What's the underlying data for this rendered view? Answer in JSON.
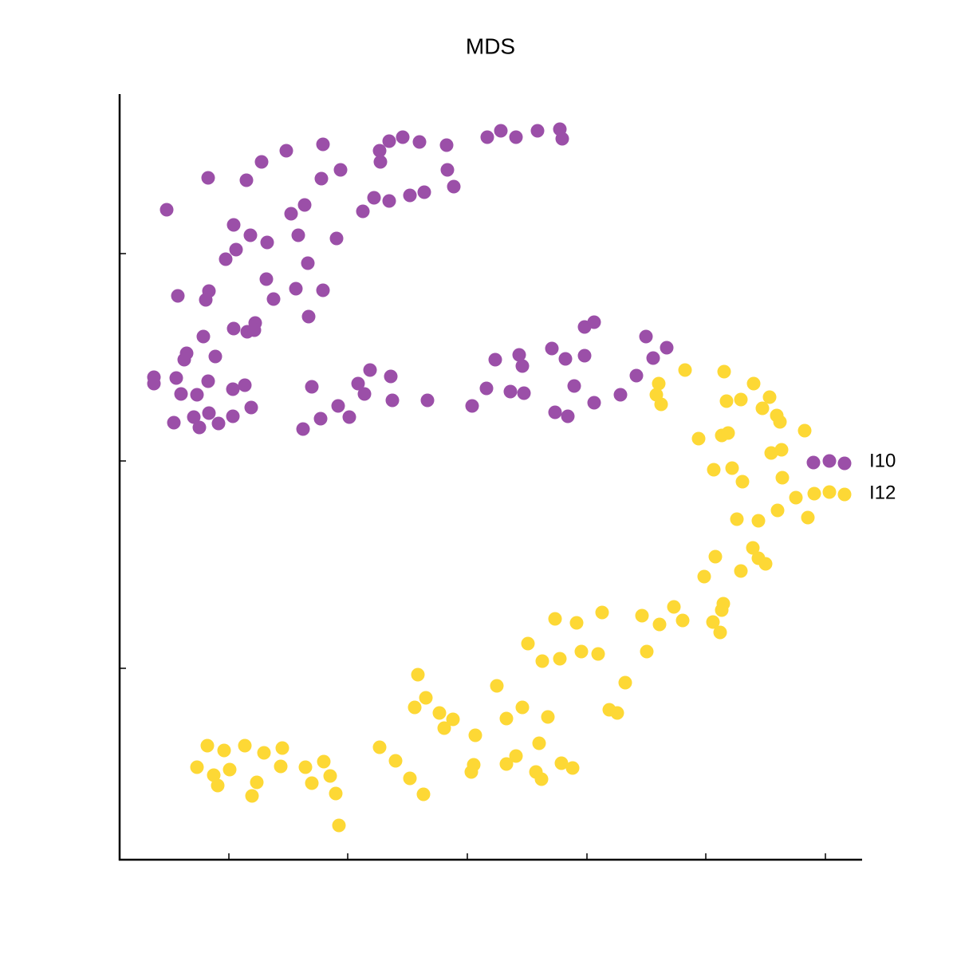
{
  "chart_data": {
    "type": "scatter",
    "title": "MDS",
    "xlim": [
      0,
      930
    ],
    "ylim": [
      0,
      958
    ],
    "xticks": [
      137,
      286,
      436,
      586,
      735,
      885
    ],
    "yticks": [
      240,
      500,
      760
    ],
    "grid": false,
    "legend": "right",
    "series": [
      {
        "name": "I10",
        "color": "#9b4fa8",
        "x": [
          59,
          111,
          159,
          178,
          209,
          255,
          253,
          277,
          326,
          327,
          338,
          355,
          376,
          410,
          411,
          419,
          461,
          478,
          497,
          524,
          552,
          555,
          382,
          364,
          338,
          319,
          305,
          232,
          215,
          143,
          164,
          146,
          185,
          224,
          272,
          133,
          236,
          184,
          221,
          255,
          193,
          73,
          112,
          108,
          237,
          170,
          143,
          160,
          169,
          105,
          84,
          81,
          120,
          43,
          43,
          71,
          111,
          157,
          142,
          77,
          97,
          165,
          112,
          93,
          142,
          68,
          100,
          124,
          230,
          252,
          241,
          274,
          288,
          299,
          307,
          314,
          340,
          342,
          386,
          442,
          460,
          490,
          507,
          471,
          501,
          505,
          542,
          559,
          583,
          583,
          595,
          570,
          546,
          562,
          595,
          628,
          648,
          660,
          669,
          686,
          870,
          890,
          909
        ],
        "values": [
          815,
          855,
          852,
          875,
          889,
          897,
          854,
          865,
          889,
          875,
          901,
          906,
          900,
          896,
          865,
          844,
          906,
          914,
          906,
          914,
          916,
          904,
          837,
          833,
          826,
          830,
          813,
          821,
          810,
          796,
          783,
          765,
          774,
          783,
          779,
          753,
          748,
          728,
          716,
          714,
          703,
          707,
          713,
          702,
          681,
          673,
          666,
          662,
          664,
          656,
          635,
          627,
          631,
          605,
          597,
          604,
          600,
          595,
          590,
          584,
          583,
          567,
          560,
          555,
          556,
          548,
          542,
          547,
          540,
          553,
          593,
          569,
          555,
          597,
          584,
          614,
          606,
          576,
          576,
          569,
          591,
          587,
          585,
          627,
          633,
          619,
          641,
          628,
          632,
          668,
          674,
          594,
          561,
          556,
          573,
          583,
          607,
          656,
          629,
          642,
          498,
          500,
          497
        ]
      },
      {
        "name": "I12",
        "color": "#fdd835",
        "x": [
          709,
          758,
          676,
          673,
          679,
          761,
          779,
          795,
          815,
          806,
          824,
          828,
          859,
          726,
          755,
          763,
          817,
          830,
          745,
          768,
          781,
          831,
          848,
          871,
          890,
          909,
          863,
          825,
          774,
          801,
          747,
          794,
          801,
          810,
          779,
          733,
          757,
          755,
          744,
          753,
          706,
          695,
          677,
          655,
          661,
          605,
          573,
          546,
          512,
          530,
          552,
          579,
          600,
          634,
          614,
          624,
          473,
          505,
          485,
          537,
          446,
          526,
          497,
          485,
          444,
          441,
          522,
          529,
          554,
          568,
          374,
          384,
          370,
          401,
          418,
          407,
          326,
          346,
          364,
          381,
          110,
          131,
          157,
          181,
          204,
          97,
          118,
          138,
          202,
          233,
          256,
          264,
          123,
          172,
          241,
          166,
          271,
          275
        ],
        "values": [
          614,
          612,
          597,
          583,
          571,
          575,
          577,
          597,
          580,
          566,
          557,
          549,
          538,
          528,
          532,
          535,
          510,
          514,
          489,
          491,
          474,
          479,
          454,
          459,
          461,
          458,
          429,
          438,
          427,
          425,
          380,
          391,
          378,
          371,
          362,
          355,
          321,
          313,
          298,
          285,
          300,
          317,
          295,
          306,
          261,
          310,
          297,
          302,
          271,
          249,
          252,
          261,
          258,
          222,
          188,
          184,
          218,
          191,
          177,
          179,
          156,
          146,
          130,
          120,
          119,
          110,
          110,
          101,
          121,
          115,
          232,
          203,
          191,
          184,
          176,
          165,
          141,
          124,
          102,
          82,
          143,
          137,
          143,
          134,
          140,
          116,
          106,
          113,
          117,
          116,
          123,
          105,
          93,
          97,
          96,
          80,
          83,
          43
        ]
      }
    ]
  }
}
